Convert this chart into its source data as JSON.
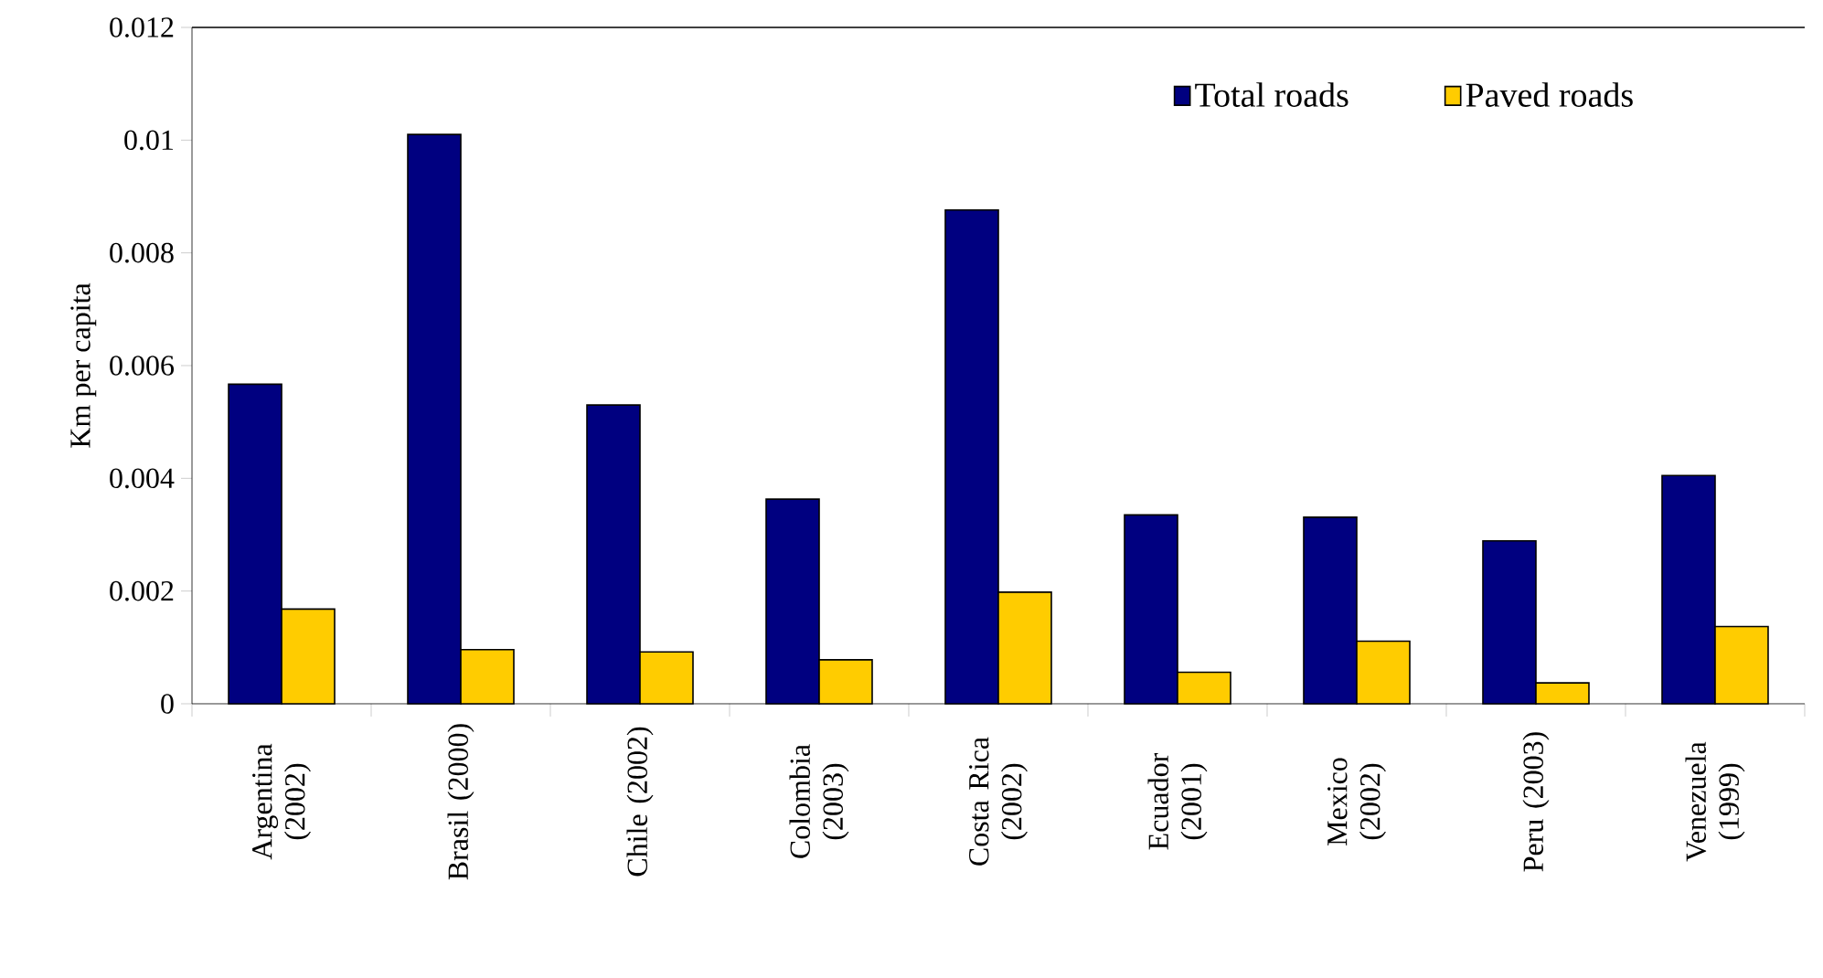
{
  "chart_data": {
    "type": "bar",
    "ylabel": "Km per capita",
    "categories": [
      "Argentina (2002)",
      "Brasil (2000)",
      "Chile (2002)",
      "Colombia (2003)",
      "Costa Rica (2002)",
      "Ecuador (2001)",
      "Mexico (2002)",
      "Peru (2003)",
      "Venezuela (1999)"
    ],
    "series": [
      {
        "name": "Total roads",
        "color": "#000080",
        "values": [
          0.00567,
          0.0101,
          0.0053,
          0.00363,
          0.00876,
          0.00335,
          0.00331,
          0.00289,
          0.00405
        ]
      },
      {
        "name": "Paved roads",
        "color": "#ffcc00",
        "values": [
          0.00168,
          0.00096,
          0.00092,
          0.00078,
          0.00198,
          0.00056,
          0.00111,
          0.00037,
          0.00137
        ]
      }
    ],
    "ylim": [
      0,
      0.012
    ],
    "yticks": [
      0,
      0.002,
      0.004,
      0.006,
      0.008,
      0.01,
      0.012
    ],
    "grid": false,
    "legend": "top right"
  }
}
